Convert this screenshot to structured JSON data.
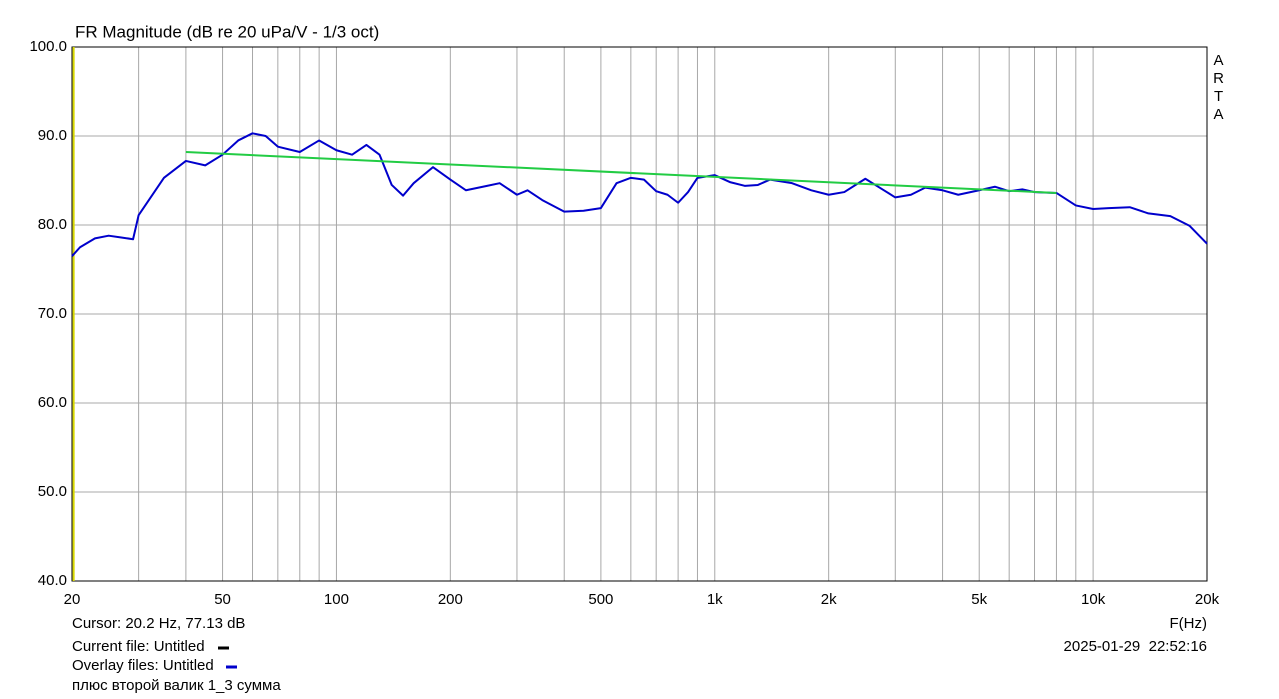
{
  "chart_data": {
    "type": "line",
    "title": "FR Magnitude (dB re 20 uPa/V - 1/3 oct)",
    "watermark": "ARTA",
    "xlabel": "F(Hz)",
    "xscale": "log",
    "xlim": [
      20,
      20000
    ],
    "ylim": [
      40,
      100
    ],
    "xticks": [
      20,
      50,
      100,
      200,
      500,
      {
        "value": 1000,
        "label": "1k"
      },
      {
        "value": 2000,
        "label": "2k"
      },
      {
        "value": 5000,
        "label": "5k"
      },
      {
        "value": 10000,
        "label": "10k"
      },
      {
        "value": 20000,
        "label": "20k"
      }
    ],
    "xgrid": [
      30,
      40,
      60,
      70,
      80,
      90,
      300,
      400,
      600,
      700,
      800,
      900,
      3000,
      4000,
      6000,
      7000,
      8000,
      9000
    ],
    "yticks": [
      {
        "value": 40,
        "label": "40.0"
      },
      {
        "value": 50,
        "label": "50.0"
      },
      {
        "value": 60,
        "label": "60.0"
      },
      {
        "value": 70,
        "label": "70.0"
      },
      {
        "value": 80,
        "label": "80.0"
      },
      {
        "value": 90,
        "label": "90.0"
      },
      {
        "value": 100,
        "label": "100.0"
      }
    ],
    "grid": true,
    "cursor": {
      "label": "Cursor: 20.2 Hz, 77.13 dB",
      "x": 20.2,
      "color": "#d8d800"
    },
    "current_file": {
      "label": "Current file: Untitled",
      "color": "#000000"
    },
    "overlay_files": {
      "label": "Overlay files: Untitled",
      "color": "#0000cc"
    },
    "timestamp": "2025-01-29  22:52:16",
    "caption": "плюс второй валик 1_3 сумма",
    "series": [
      {
        "color": "#0000cc",
        "x": [
          20,
          21,
          23,
          25,
          27,
          29,
          30,
          35,
          40,
          45,
          50,
          55,
          60,
          65,
          70,
          80,
          90,
          100,
          110,
          120,
          130,
          140,
          150,
          160,
          180,
          200,
          220,
          250,
          270,
          300,
          320,
          350,
          400,
          450,
          500,
          550,
          600,
          650,
          700,
          750,
          800,
          850,
          900,
          1000,
          1100,
          1200,
          1300,
          1400,
          1600,
          1800,
          2000,
          2200,
          2500,
          2800,
          3000,
          3300,
          3600,
          4000,
          4400,
          5000,
          5500,
          6000,
          6500,
          7000,
          8000,
          9000,
          10000,
          11000,
          12500,
          14000,
          16000,
          18000,
          20000
        ],
        "values": [
          76.5,
          77.5,
          78.5,
          78.8,
          78.6,
          78.4,
          81.1,
          85.3,
          87.2,
          86.7,
          87.9,
          89.5,
          90.3,
          90.0,
          88.8,
          88.2,
          89.5,
          88.4,
          87.9,
          89.0,
          87.9,
          84.5,
          83.3,
          84.7,
          86.5,
          85.1,
          83.9,
          84.4,
          84.7,
          83.4,
          83.9,
          82.8,
          81.5,
          81.6,
          81.9,
          84.7,
          85.3,
          85.1,
          83.8,
          83.4,
          82.5,
          83.7,
          85.3,
          85.6,
          84.8,
          84.4,
          84.5,
          85.1,
          84.7,
          83.9,
          83.4,
          83.7,
          85.2,
          83.9,
          83.1,
          83.4,
          84.2,
          83.9,
          83.4,
          83.9,
          84.3,
          83.8,
          84.0,
          83.7,
          83.6,
          82.2,
          81.8,
          81.9,
          82.0,
          81.3,
          81.0,
          79.9,
          77.9
        ]
      },
      {
        "color": "#22cc44",
        "x": [
          40,
          8000
        ],
        "values": [
          88.2,
          83.6
        ]
      }
    ]
  }
}
